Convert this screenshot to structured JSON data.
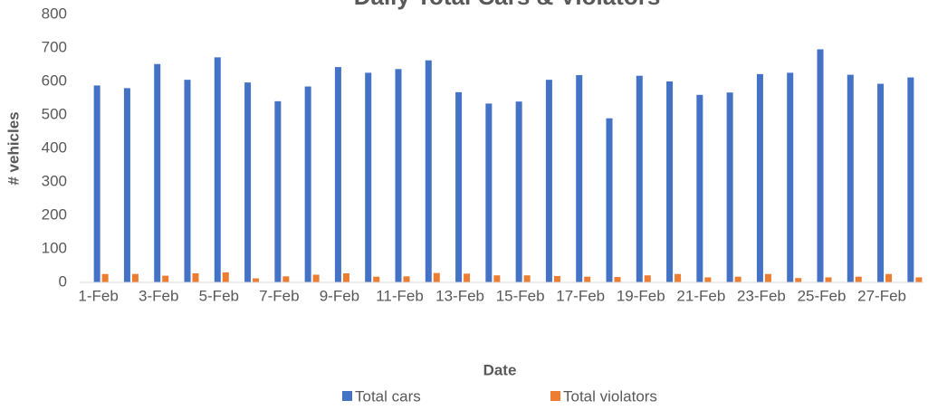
{
  "chart_data": {
    "type": "bar",
    "title": "Daily Total Cars & Violators",
    "categories": [
      "1-Feb",
      null,
      "3-Feb",
      null,
      "5-Feb",
      null,
      "7-Feb",
      null,
      "9-Feb",
      null,
      "11-Feb",
      null,
      "13-Feb",
      null,
      "15-Feb",
      null,
      "17-Feb",
      null,
      "19-Feb",
      null,
      "21-Feb",
      null,
      "23-Feb",
      null,
      "25-Feb",
      null,
      "27-Feb",
      null
    ],
    "series": [
      {
        "name": "Total cars",
        "color": "#4472c4",
        "values": [
          588,
          580,
          652,
          605,
          672,
          597,
          541,
          585,
          643,
          626,
          637,
          663,
          568,
          534,
          540,
          605,
          619,
          490,
          617,
          600,
          560,
          567,
          622,
          626,
          696,
          620,
          593,
          612
        ]
      },
      {
        "name": "Total violators",
        "color": "#ed7d31",
        "values": [
          25,
          25,
          20,
          27,
          30,
          12,
          18,
          23,
          27,
          17,
          18,
          28,
          26,
          21,
          21,
          19,
          17,
          16,
          21,
          25,
          15,
          17,
          25,
          13,
          15,
          17,
          25,
          15
        ]
      }
    ],
    "xlabel": "Date",
    "ylabel": "# vehicles",
    "ylim": [
      0,
      800
    ],
    "yticks": [
      0,
      100,
      200,
      300,
      400,
      500,
      600,
      700,
      800
    ],
    "grid": false,
    "legend": "bottom"
  }
}
